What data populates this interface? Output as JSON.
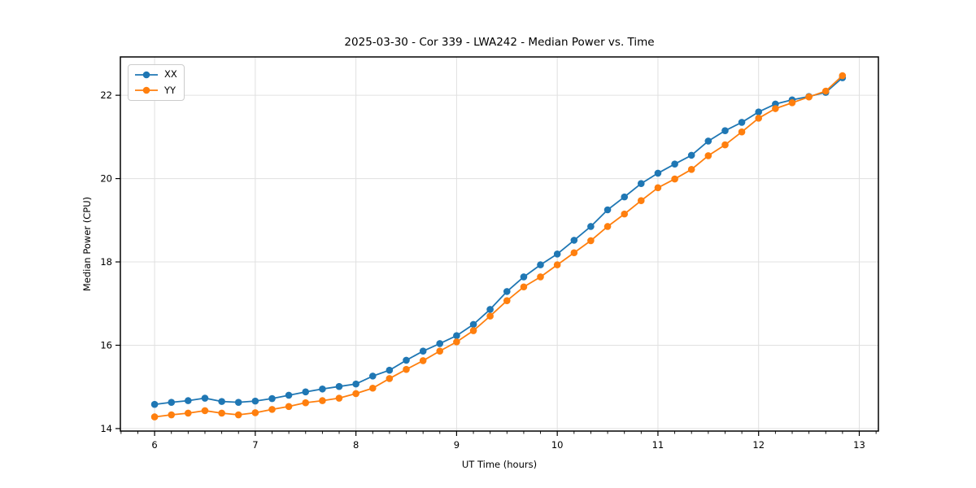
{
  "chart_data": {
    "type": "line",
    "title": "2025-03-30 - Cor 339 - LWA242 - Median Power vs. Time",
    "xlabel": "UT Time (hours)",
    "ylabel": "Median Power (CPU)",
    "xlim": [
      5.66,
      13.19
    ],
    "ylim": [
      13.94,
      22.92
    ],
    "xticks": [
      6,
      7,
      8,
      9,
      10,
      11,
      12,
      13
    ],
    "yticks": [
      14,
      16,
      18,
      20,
      22
    ],
    "x_minor_step": 0.16667,
    "grid": true,
    "legend_position": "upper-left",
    "x": [
      6.0,
      6.167,
      6.333,
      6.5,
      6.667,
      6.833,
      7.0,
      7.167,
      7.333,
      7.5,
      7.667,
      7.833,
      8.0,
      8.167,
      8.333,
      8.5,
      8.667,
      8.833,
      9.0,
      9.167,
      9.333,
      9.5,
      9.667,
      9.833,
      10.0,
      10.167,
      10.333,
      10.5,
      10.667,
      10.833,
      11.0,
      11.167,
      11.333,
      11.5,
      11.667,
      11.833,
      12.0,
      12.167,
      12.333,
      12.5,
      12.667,
      12.833
    ],
    "series": [
      {
        "name": "XX",
        "color": "#1f77b4",
        "values": [
          14.58,
          14.63,
          14.67,
          14.73,
          14.65,
          14.63,
          14.66,
          14.72,
          14.8,
          14.88,
          14.95,
          15.01,
          15.07,
          15.26,
          15.4,
          15.64,
          15.86,
          16.04,
          16.23,
          16.5,
          16.86,
          17.29,
          17.64,
          17.93,
          18.19,
          18.52,
          18.85,
          19.25,
          19.56,
          19.88,
          20.13,
          20.35,
          20.56,
          20.9,
          21.15,
          21.35,
          21.6,
          21.79,
          21.89,
          21.97,
          22.07,
          22.42
        ]
      },
      {
        "name": "YY",
        "color": "#ff7f0e",
        "values": [
          14.28,
          14.33,
          14.37,
          14.43,
          14.37,
          14.33,
          14.38,
          14.46,
          14.53,
          14.62,
          14.67,
          14.73,
          14.84,
          14.97,
          15.2,
          15.42,
          15.63,
          15.86,
          16.08,
          16.35,
          16.7,
          17.07,
          17.4,
          17.64,
          17.93,
          18.22,
          18.51,
          18.85,
          19.15,
          19.47,
          19.78,
          19.99,
          20.22,
          20.55,
          20.81,
          21.12,
          21.45,
          21.68,
          21.82,
          21.96,
          22.1,
          22.47
        ]
      }
    ],
    "style": {
      "grid_color": "#e0e0e0",
      "spine_color": "#000000",
      "tick_color": "#000000",
      "marker_radius": 4.3,
      "line_width": 1.8
    }
  }
}
